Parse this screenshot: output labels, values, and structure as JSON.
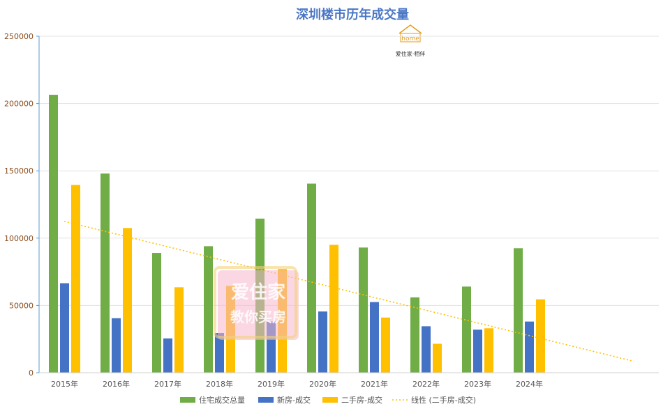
{
  "chart_data": {
    "type": "bar",
    "title": "深圳楼市历年成交量",
    "categories": [
      "2015年",
      "2016年",
      "2017年",
      "2018年",
      "2019年",
      "2020年",
      "2021年",
      "2022年",
      "2023年",
      "2024年"
    ],
    "series": [
      {
        "name": "住宅成交总量",
        "color": "#70ad47",
        "values": [
          206500,
          148000,
          89000,
          94000,
          114500,
          140500,
          93000,
          56000,
          64000,
          92500
        ]
      },
      {
        "name": "新房-成交",
        "color": "#4472c4",
        "values": [
          66500,
          40500,
          25500,
          29500,
          38000,
          45500,
          52500,
          34500,
          32000,
          38000
        ]
      },
      {
        "name": "二手房-成交",
        "color": "#ffc000",
        "values": [
          139500,
          107500,
          63500,
          64500,
          77000,
          95000,
          41000,
          21500,
          33000,
          54500
        ]
      }
    ],
    "trendline": {
      "name": "线性 (二手房-成交)",
      "color": "#ffc000",
      "start_value": 112500,
      "end_value": 8500
    },
    "yticks": [
      "0",
      "50000",
      "100000",
      "150000",
      "200000",
      "250000"
    ],
    "ylim": [
      0,
      250000
    ],
    "xlabel": "",
    "ylabel": "",
    "grid": true,
    "legend_position": "bottom"
  },
  "logo": {
    "word": "home",
    "sub": "爱住家·相伴"
  },
  "watermark": {
    "line1": "爱住家",
    "line2": "教你买房"
  }
}
